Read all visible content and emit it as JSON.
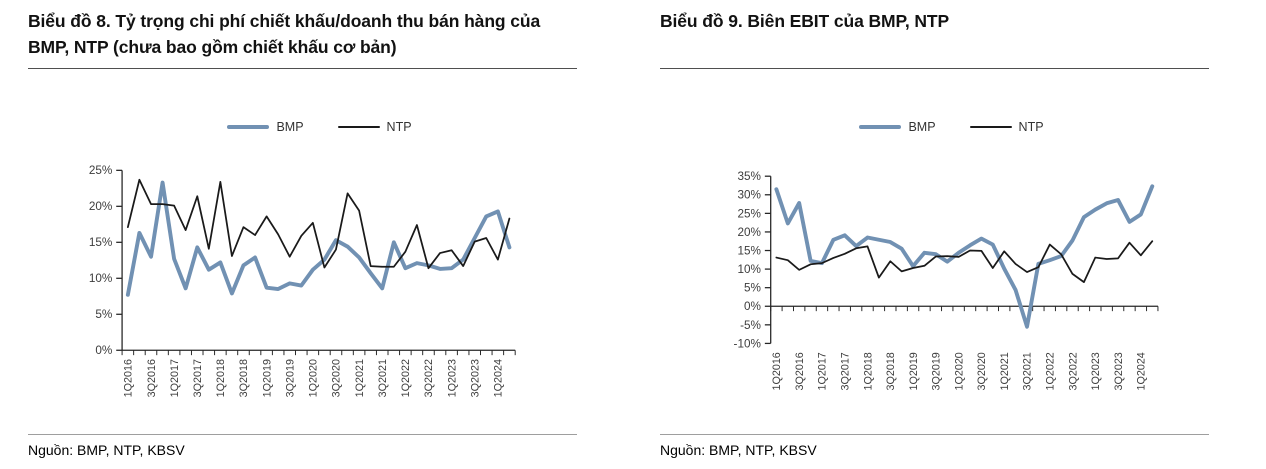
{
  "page": {
    "background": "#ffffff"
  },
  "colors": {
    "bmp_line": "#7191B3",
    "ntp_line": "#1a1a1a",
    "axis": "#262626",
    "tick_text": "#3d3d3d",
    "title_rule": "#4f4f4f",
    "source_rule": "#9e9e9e"
  },
  "charts": [
    {
      "title": "Biểu đồ 8. Tỷ trọng chi phí chiết khấu/doanh thu bán hàng của BMP, NTP (chưa bao gồm chiết khấu cơ bản)",
      "legend": [
        {
          "label": "BMP",
          "color": "#7191B3",
          "style": "thick"
        },
        {
          "label": "NTP",
          "color": "#1a1a1a",
          "style": "thin"
        }
      ],
      "source": "Nguồn: BMP, NTP, KBSV"
    },
    {
      "title": "Biểu đồ 9. Biên EBIT của BMP, NTP",
      "legend": [
        {
          "label": "BMP",
          "color": "#7191B3",
          "style": "thick"
        },
        {
          "label": "NTP",
          "color": "#1a1a1a",
          "style": "thin"
        }
      ],
      "source": "Nguồn: BMP, NTP, KBSV"
    }
  ],
  "chart_data": [
    {
      "type": "line",
      "title": "Tỷ trọng chi phí chiết khấu/doanh thu bán hàng (%)",
      "xlabel": "",
      "ylabel": "",
      "ylim": [
        0,
        25
      ],
      "x_axis_at": 0,
      "grid": false,
      "legend_position": "top-center",
      "y_tick_labels": [
        "25%",
        "20%",
        "15%",
        "10%",
        "5%",
        "0%"
      ],
      "x_tick_every": 2,
      "x_tick_labels": [
        "1Q2016",
        "3Q2016",
        "1Q2017",
        "3Q2017",
        "1Q2018",
        "3Q2018",
        "1Q2019",
        "3Q2019",
        "1Q2020",
        "3Q2020",
        "1Q2021",
        "3Q2021",
        "1Q2022",
        "3Q2022",
        "1Q2023",
        "3Q2023",
        "1Q2024"
      ],
      "categories": [
        "1Q2016",
        "2Q2016",
        "3Q2016",
        "4Q2016",
        "1Q2017",
        "2Q2017",
        "3Q2017",
        "4Q2017",
        "1Q2018",
        "2Q2018",
        "3Q2018",
        "4Q2018",
        "1Q2019",
        "2Q2019",
        "3Q2019",
        "4Q2019",
        "1Q2020",
        "2Q2020",
        "3Q2020",
        "4Q2020",
        "1Q2021",
        "2Q2021",
        "3Q2021",
        "4Q2021",
        "1Q2022",
        "2Q2022",
        "3Q2022",
        "4Q2022",
        "1Q2023",
        "2Q2023",
        "3Q2023",
        "4Q2023",
        "1Q2024",
        "2Q2024"
      ],
      "series": [
        {
          "name": "BMP",
          "color": "#7191B3",
          "line_width": 4,
          "values": [
            7.7,
            16.3,
            13.0,
            23.3,
            12.7,
            8.6,
            14.3,
            11.2,
            12.2,
            7.9,
            11.8,
            12.9,
            8.7,
            8.5,
            9.3,
            9.0,
            11.2,
            12.6,
            15.3,
            14.4,
            12.9,
            10.7,
            8.6,
            15.0,
            11.4,
            12.1,
            11.8,
            11.3,
            11.4,
            12.6,
            15.6,
            18.6,
            19.3,
            14.3
          ]
        },
        {
          "name": "NTP",
          "color": "#1a1a1a",
          "line_width": 1.8,
          "values": [
            17.1,
            23.7,
            20.3,
            20.3,
            20.1,
            16.7,
            21.4,
            14.1,
            23.4,
            13.1,
            17.1,
            16.0,
            18.6,
            16.1,
            13.0,
            15.9,
            17.7,
            11.5,
            14.0,
            21.8,
            19.4,
            11.7,
            11.6,
            11.6,
            13.7,
            17.4,
            11.4,
            13.5,
            13.9,
            11.7,
            15.1,
            15.6,
            12.6,
            18.3
          ]
        }
      ]
    },
    {
      "type": "line",
      "title": "Biên EBIT của BMP, NTP (%)",
      "xlabel": "",
      "ylabel": "",
      "ylim": [
        -10,
        35
      ],
      "x_axis_at": 0,
      "grid": false,
      "legend_position": "top-center",
      "y_tick_labels": [
        "35%",
        "30%",
        "25%",
        "20%",
        "15%",
        "10%",
        "5%",
        "0%",
        "-5%",
        "-10%"
      ],
      "x_tick_every": 2,
      "x_tick_labels": [
        "1Q2016",
        "3Q2016",
        "1Q2017",
        "3Q2017",
        "1Q2018",
        "3Q2018",
        "1Q2019",
        "3Q2019",
        "1Q2020",
        "3Q2020",
        "1Q2021",
        "3Q2021",
        "1Q2022",
        "3Q2022",
        "1Q2023",
        "3Q2023",
        "1Q2024"
      ],
      "categories": [
        "1Q2016",
        "2Q2016",
        "3Q2016",
        "4Q2016",
        "1Q2017",
        "2Q2017",
        "3Q2017",
        "4Q2017",
        "1Q2018",
        "2Q2018",
        "3Q2018",
        "4Q2018",
        "1Q2019",
        "2Q2019",
        "3Q2019",
        "4Q2019",
        "1Q2020",
        "2Q2020",
        "3Q2020",
        "4Q2020",
        "1Q2021",
        "2Q2021",
        "3Q2021",
        "4Q2021",
        "1Q2022",
        "2Q2022",
        "3Q2022",
        "4Q2022",
        "1Q2023",
        "2Q2023",
        "3Q2023",
        "4Q2023",
        "1Q2024",
        "2Q2024"
      ],
      "series": [
        {
          "name": "BMP",
          "color": "#7191B3",
          "line_width": 4,
          "values": [
            31.5,
            22.3,
            27.8,
            12.2,
            11.6,
            17.9,
            19.1,
            16.2,
            18.5,
            17.9,
            17.3,
            15.5,
            10.8,
            14.4,
            14.0,
            12.0,
            14.4,
            16.4,
            18.2,
            16.6,
            10.1,
            4.4,
            -5.5,
            11.4,
            12.4,
            13.5,
            17.7,
            24.0,
            26.0,
            27.7,
            28.6,
            22.7,
            24.7,
            32.3
          ]
        },
        {
          "name": "NTP",
          "color": "#1a1a1a",
          "line_width": 1.8,
          "values": [
            13.1,
            12.4,
            9.8,
            11.3,
            11.6,
            13.0,
            14.1,
            15.6,
            16.1,
            7.7,
            12.1,
            9.4,
            10.3,
            10.9,
            13.4,
            13.5,
            13.3,
            15.0,
            14.9,
            10.3,
            14.8,
            11.4,
            9.2,
            10.5,
            16.6,
            14.0,
            8.7,
            6.5,
            13.1,
            12.7,
            12.9,
            17.1,
            13.7,
            17.5
          ]
        }
      ]
    }
  ]
}
